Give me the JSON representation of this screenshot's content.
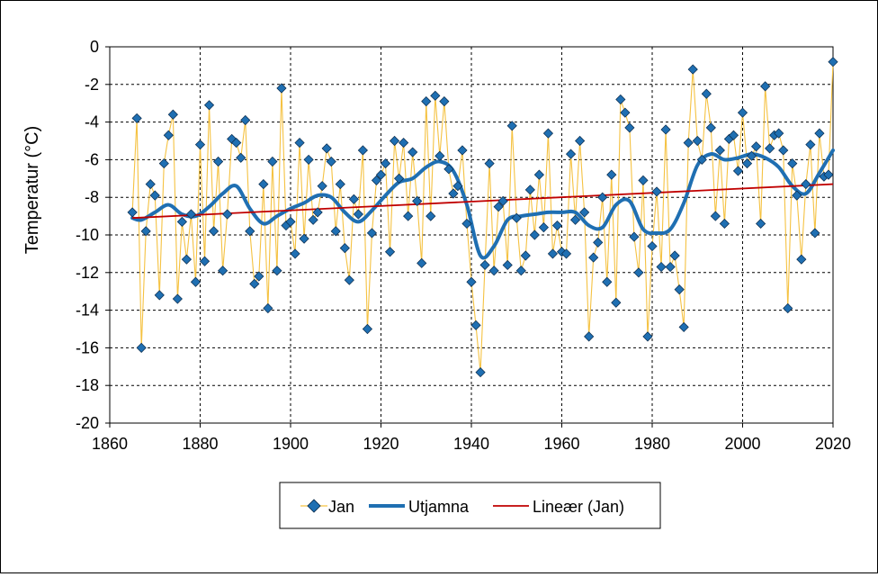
{
  "chart_data": {
    "type": "line",
    "ylabel": "Temperatur  (°C)",
    "xlim": [
      1860,
      2020
    ],
    "ylim": [
      -20,
      0
    ],
    "x_ticks": [
      1860,
      1880,
      1900,
      1920,
      1940,
      1960,
      1980,
      2000,
      2020
    ],
    "y_ticks": [
      0,
      -2,
      -4,
      -6,
      -8,
      -10,
      -12,
      -14,
      -16,
      -18,
      -20
    ],
    "grid": true,
    "legend_position": "bottom",
    "colors": {
      "jan": "#F5C242",
      "marker": "#1F6FB2",
      "smooth": "#1F6FB2",
      "trend": "#C00000"
    },
    "series": [
      {
        "name": "Jan",
        "style": "line-markers",
        "x": [
          1865,
          1866,
          1867,
          1868,
          1869,
          1870,
          1871,
          1872,
          1873,
          1874,
          1875,
          1876,
          1877,
          1878,
          1879,
          1880,
          1881,
          1882,
          1883,
          1884,
          1885,
          1886,
          1887,
          1888,
          1889,
          1890,
          1891,
          1892,
          1893,
          1894,
          1895,
          1896,
          1897,
          1898,
          1899,
          1900,
          1901,
          1902,
          1903,
          1904,
          1905,
          1906,
          1907,
          1908,
          1909,
          1910,
          1911,
          1912,
          1913,
          1914,
          1915,
          1916,
          1917,
          1918,
          1919,
          1920,
          1921,
          1922,
          1923,
          1924,
          1925,
          1926,
          1927,
          1928,
          1929,
          1930,
          1931,
          1932,
          1933,
          1934,
          1935,
          1936,
          1937,
          1938,
          1939,
          1940,
          1941,
          1942,
          1943,
          1944,
          1945,
          1946,
          1947,
          1948,
          1949,
          1950,
          1951,
          1952,
          1953,
          1954,
          1955,
          1956,
          1957,
          1958,
          1959,
          1960,
          1961,
          1962,
          1963,
          1964,
          1965,
          1966,
          1967,
          1968,
          1969,
          1970,
          1971,
          1972,
          1973,
          1974,
          1975,
          1976,
          1977,
          1978,
          1979,
          1980,
          1981,
          1982,
          1983,
          1984,
          1985,
          1986,
          1987,
          1988,
          1989,
          1990,
          1991,
          1992,
          1993,
          1994,
          1995,
          1996,
          1997,
          1998,
          1999,
          2000,
          2001,
          2002,
          2003,
          2004,
          2005,
          2006,
          2007,
          2008,
          2009,
          2010,
          2011,
          2012,
          2013,
          2014,
          2015,
          2016,
          2017,
          2018,
          2019,
          2020
        ],
        "values": [
          -8.8,
          -3.8,
          -16.0,
          -9.8,
          -7.3,
          -7.9,
          -13.2,
          -6.2,
          -4.7,
          -3.6,
          -13.4,
          -9.3,
          -11.3,
          -8.9,
          -12.5,
          -5.2,
          -11.4,
          -3.1,
          -9.8,
          -6.1,
          -11.9,
          -8.9,
          -4.9,
          -5.1,
          -5.9,
          -3.9,
          -9.8,
          -12.6,
          -12.2,
          -7.3,
          -13.9,
          -6.1,
          -11.9,
          -2.2,
          -9.5,
          -9.3,
          -11.0,
          -5.1,
          -10.2,
          -6.0,
          -9.2,
          -8.8,
          -7.4,
          -5.4,
          -6.1,
          -9.8,
          -7.3,
          -10.7,
          -12.4,
          -8.1,
          -8.9,
          -5.5,
          -15.0,
          -9.9,
          -7.1,
          -6.8,
          -6.2,
          -10.9,
          -5.0,
          -7.0,
          -5.1,
          -9.0,
          -5.6,
          -8.2,
          -11.5,
          -2.9,
          -9.0,
          -2.6,
          -5.8,
          -2.9,
          -6.5,
          -7.8,
          -7.4,
          -5.5,
          -9.4,
          -12.5,
          -14.8,
          -17.3,
          -11.6,
          -6.2,
          -11.9,
          -8.5,
          -8.2,
          -11.6,
          -4.2,
          -9.1,
          -11.9,
          -11.1,
          -7.6,
          -10.0,
          -6.8,
          -9.6,
          -4.6,
          -11.0,
          -9.5,
          -10.9,
          -11.0,
          -5.7,
          -9.2,
          -5.0,
          -8.8,
          -15.4,
          -11.2,
          -10.4,
          -8.0,
          -12.5,
          -6.8,
          -13.6,
          -2.8,
          -3.5,
          -4.3,
          -10.1,
          -12.0,
          -7.1,
          -15.4,
          -10.6,
          -7.7,
          -11.7,
          -4.4,
          -11.7,
          -11.1,
          -12.9,
          -14.9,
          -5.1,
          -1.2,
          -5.0,
          -6.0,
          -2.5,
          -4.3,
          -9.0,
          -5.5,
          -9.4,
          -4.9,
          -4.7,
          -6.6,
          -3.5,
          -6.2,
          -5.8,
          -5.3,
          -9.4,
          -2.1,
          -5.4,
          -4.7,
          -4.6,
          -5.5,
          -13.9,
          -6.2,
          -7.9,
          -11.3,
          -7.3,
          -5.2,
          -9.9,
          -4.6,
          -6.9,
          -6.8,
          -0.8
        ]
      },
      {
        "name": "Utjamna",
        "style": "smooth-line",
        "x": [
          1865,
          1867,
          1870,
          1873,
          1876,
          1879,
          1882,
          1885,
          1888,
          1891,
          1894,
          1897,
          1900,
          1903,
          1906,
          1909,
          1912,
          1915,
          1918,
          1921,
          1924,
          1927,
          1930,
          1933,
          1936,
          1939,
          1942,
          1945,
          1948,
          1951,
          1954,
          1957,
          1960,
          1963,
          1966,
          1969,
          1972,
          1975,
          1978,
          1981,
          1984,
          1987,
          1990,
          1993,
          1996,
          1999,
          2002,
          2005,
          2008,
          2011,
          2014,
          2017,
          2020
        ],
        "values": [
          -9.1,
          -9.2,
          -8.8,
          -8.4,
          -8.9,
          -9.0,
          -8.5,
          -7.8,
          -7.4,
          -8.6,
          -9.4,
          -9.0,
          -8.6,
          -8.3,
          -7.9,
          -8.0,
          -8.8,
          -9.3,
          -8.7,
          -7.9,
          -7.2,
          -7.0,
          -6.4,
          -6.1,
          -6.6,
          -8.4,
          -11.1,
          -10.6,
          -9.2,
          -9.0,
          -8.9,
          -8.8,
          -8.8,
          -8.8,
          -9.5,
          -9.6,
          -8.4,
          -8.2,
          -9.7,
          -9.9,
          -9.7,
          -8.3,
          -6.3,
          -5.7,
          -6.0,
          -5.9,
          -5.7,
          -5.9,
          -6.4,
          -7.4,
          -7.8,
          -6.7,
          -5.5
        ]
      },
      {
        "name": "Lineær (Jan)",
        "style": "trend-line",
        "x": [
          1865,
          2020
        ],
        "values": [
          -9.1,
          -7.3
        ]
      }
    ]
  }
}
